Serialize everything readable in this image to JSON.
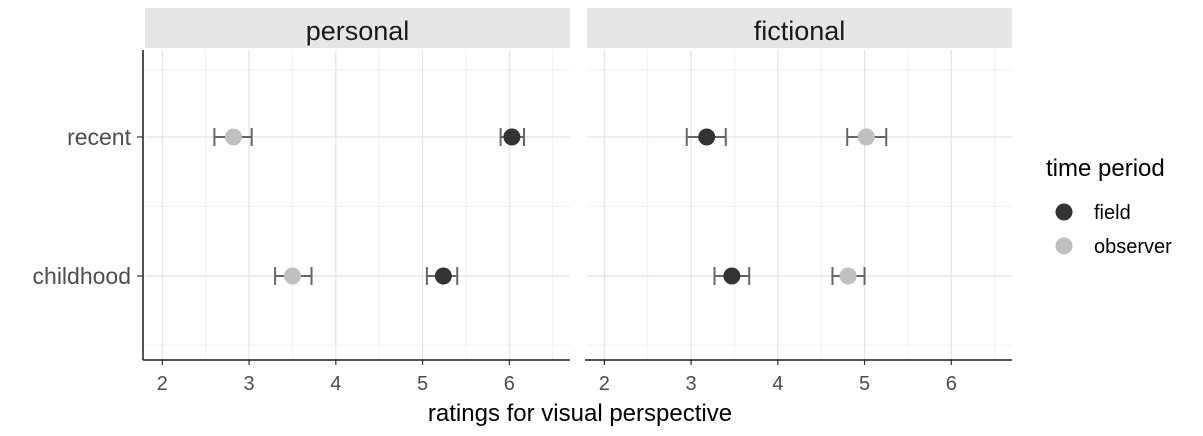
{
  "chart_data": {
    "type": "dot-errorbar",
    "xlabel": "ratings for visual perspective",
    "ylabel": "",
    "xlim": [
      1.8,
      6.7
    ],
    "x_ticks": [
      2,
      3,
      4,
      5,
      6
    ],
    "categories": [
      "recent",
      "childhood"
    ],
    "grid": true,
    "legend": {
      "title": "time period",
      "position": "right",
      "entries": [
        {
          "name": "field",
          "color": "#333333"
        },
        {
          "name": "observer",
          "color": "#c0c0c0"
        }
      ]
    },
    "panels": [
      {
        "label": "personal",
        "series": [
          {
            "name": "field",
            "color": "#333333",
            "points": [
              {
                "category": "recent",
                "x": 6.03,
                "low": 5.9,
                "high": 6.17
              },
              {
                "category": "childhood",
                "x": 5.24,
                "low": 5.05,
                "high": 5.4
              }
            ]
          },
          {
            "name": "observer",
            "color": "#c0c0c0",
            "points": [
              {
                "category": "recent",
                "x": 2.82,
                "low": 2.6,
                "high": 3.03
              },
              {
                "category": "childhood",
                "x": 3.5,
                "low": 3.3,
                "high": 3.72
              }
            ]
          }
        ]
      },
      {
        "label": "fictional",
        "series": [
          {
            "name": "field",
            "color": "#333333",
            "points": [
              {
                "category": "recent",
                "x": 3.18,
                "low": 2.95,
                "high": 3.4
              },
              {
                "category": "childhood",
                "x": 3.47,
                "low": 3.27,
                "high": 3.67
              }
            ]
          },
          {
            "name": "observer",
            "color": "#c0c0c0",
            "points": [
              {
                "category": "recent",
                "x": 5.02,
                "low": 4.8,
                "high": 5.25
              },
              {
                "category": "childhood",
                "x": 4.81,
                "low": 4.63,
                "high": 5.0
              }
            ]
          }
        ]
      }
    ]
  }
}
